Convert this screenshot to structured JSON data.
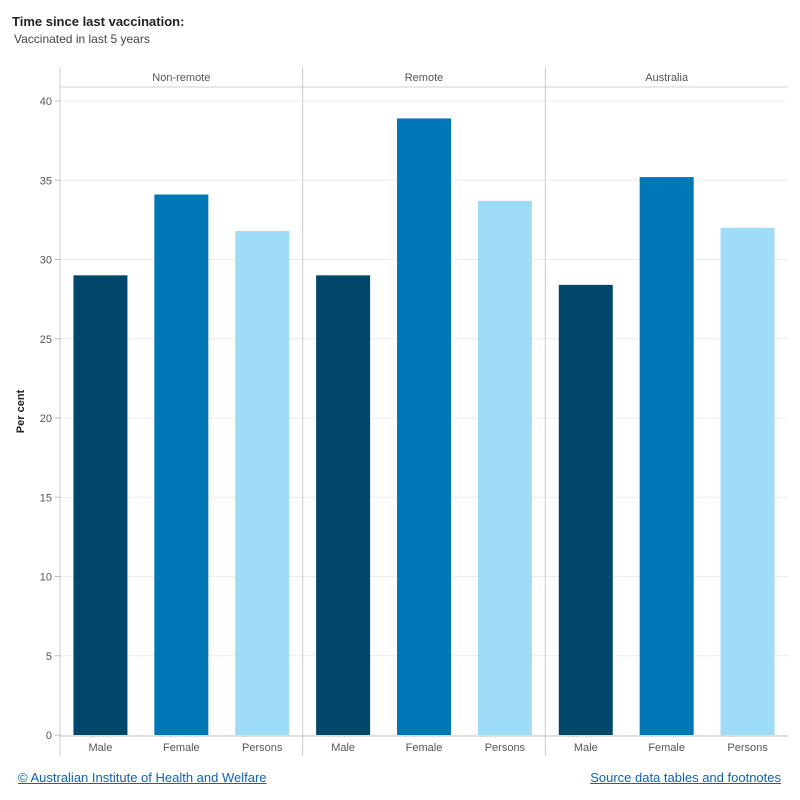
{
  "chart_data": {
    "type": "bar",
    "title": "Time since last vaccination:",
    "subtitle": "Vaccinated in last 5 years",
    "ylabel": "Per cent",
    "xlabel": "",
    "ylim": [
      0,
      40
    ],
    "yticks": [
      0,
      5,
      10,
      15,
      20,
      25,
      30,
      35,
      40
    ],
    "grid": true,
    "panels": [
      {
        "name": "Non-remote",
        "categories": [
          "Male",
          "Female",
          "Persons"
        ],
        "values": [
          29.0,
          34.1,
          31.8
        ]
      },
      {
        "name": "Remote",
        "categories": [
          "Male",
          "Female",
          "Persons"
        ],
        "values": [
          29.0,
          38.9,
          33.7
        ]
      },
      {
        "name": "Australia",
        "categories": [
          "Male",
          "Female",
          "Persons"
        ],
        "values": [
          28.4,
          35.2,
          32.0
        ]
      }
    ],
    "colors": {
      "Male": "#00476b",
      "Female": "#0078b8",
      "Persons": "#9fdcf8"
    }
  },
  "footer": {
    "copyright_label": "© Australian Institute of Health and Welfare",
    "source_label": "Source data tables and footnotes"
  }
}
